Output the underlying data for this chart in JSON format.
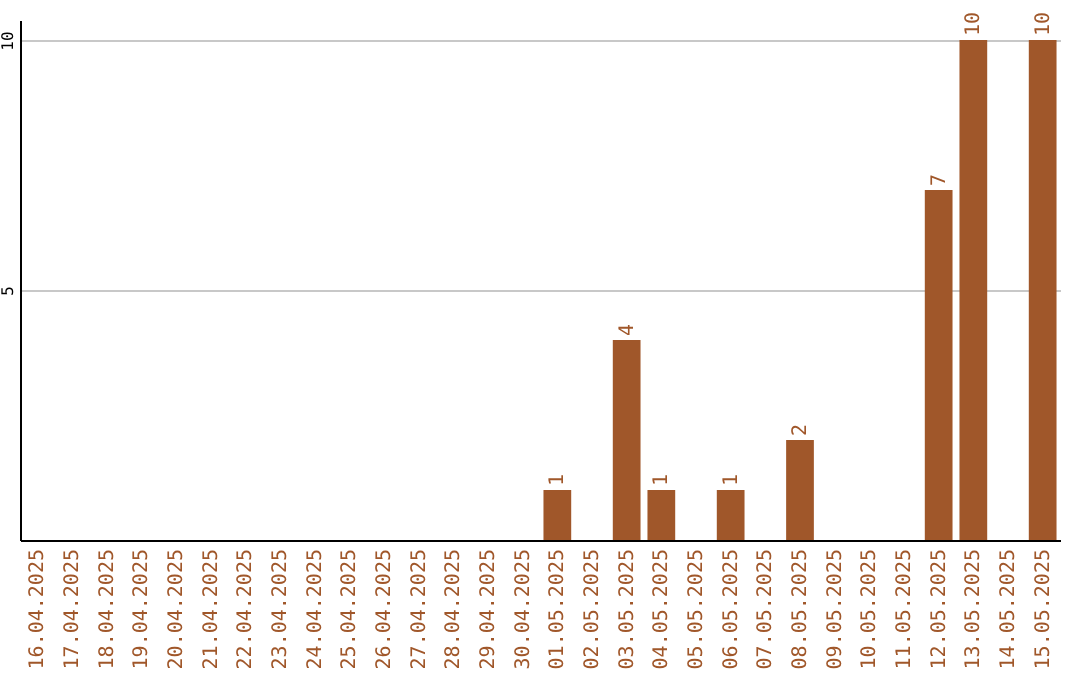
{
  "chart_data": {
    "type": "bar",
    "categories": [
      "16.04.2025",
      "17.04.2025",
      "18.04.2025",
      "19.04.2025",
      "20.04.2025",
      "21.04.2025",
      "22.04.2025",
      "23.04.2025",
      "24.04.2025",
      "25.04.2025",
      "26.04.2025",
      "27.04.2025",
      "28.04.2025",
      "29.04.2025",
      "30.04.2025",
      "01.05.2025",
      "02.05.2025",
      "03.05.2025",
      "04.05.2025",
      "05.05.2025",
      "06.05.2025",
      "07.05.2025",
      "08.05.2025",
      "09.05.2025",
      "10.05.2025",
      "11.05.2025",
      "12.05.2025",
      "13.05.2025",
      "14.05.2025",
      "15.05.2025"
    ],
    "values": [
      0,
      0,
      0,
      0,
      0,
      0,
      0,
      0,
      0,
      0,
      0,
      0,
      0,
      0,
      0,
      1,
      0,
      4,
      1,
      0,
      1,
      0,
      2,
      0,
      0,
      0,
      7,
      10,
      0,
      10
    ],
    "value_labels": [
      null,
      null,
      null,
      null,
      null,
      null,
      null,
      null,
      null,
      null,
      null,
      null,
      null,
      null,
      null,
      "1",
      null,
      "4",
      "1",
      null,
      "1",
      null,
      "2",
      null,
      null,
      null,
      "7",
      "10",
      null,
      "10"
    ],
    "color": "#a0572a",
    "ylim": [
      0,
      10.4
    ],
    "yticks": [
      5,
      10
    ],
    "grid": "y"
  }
}
